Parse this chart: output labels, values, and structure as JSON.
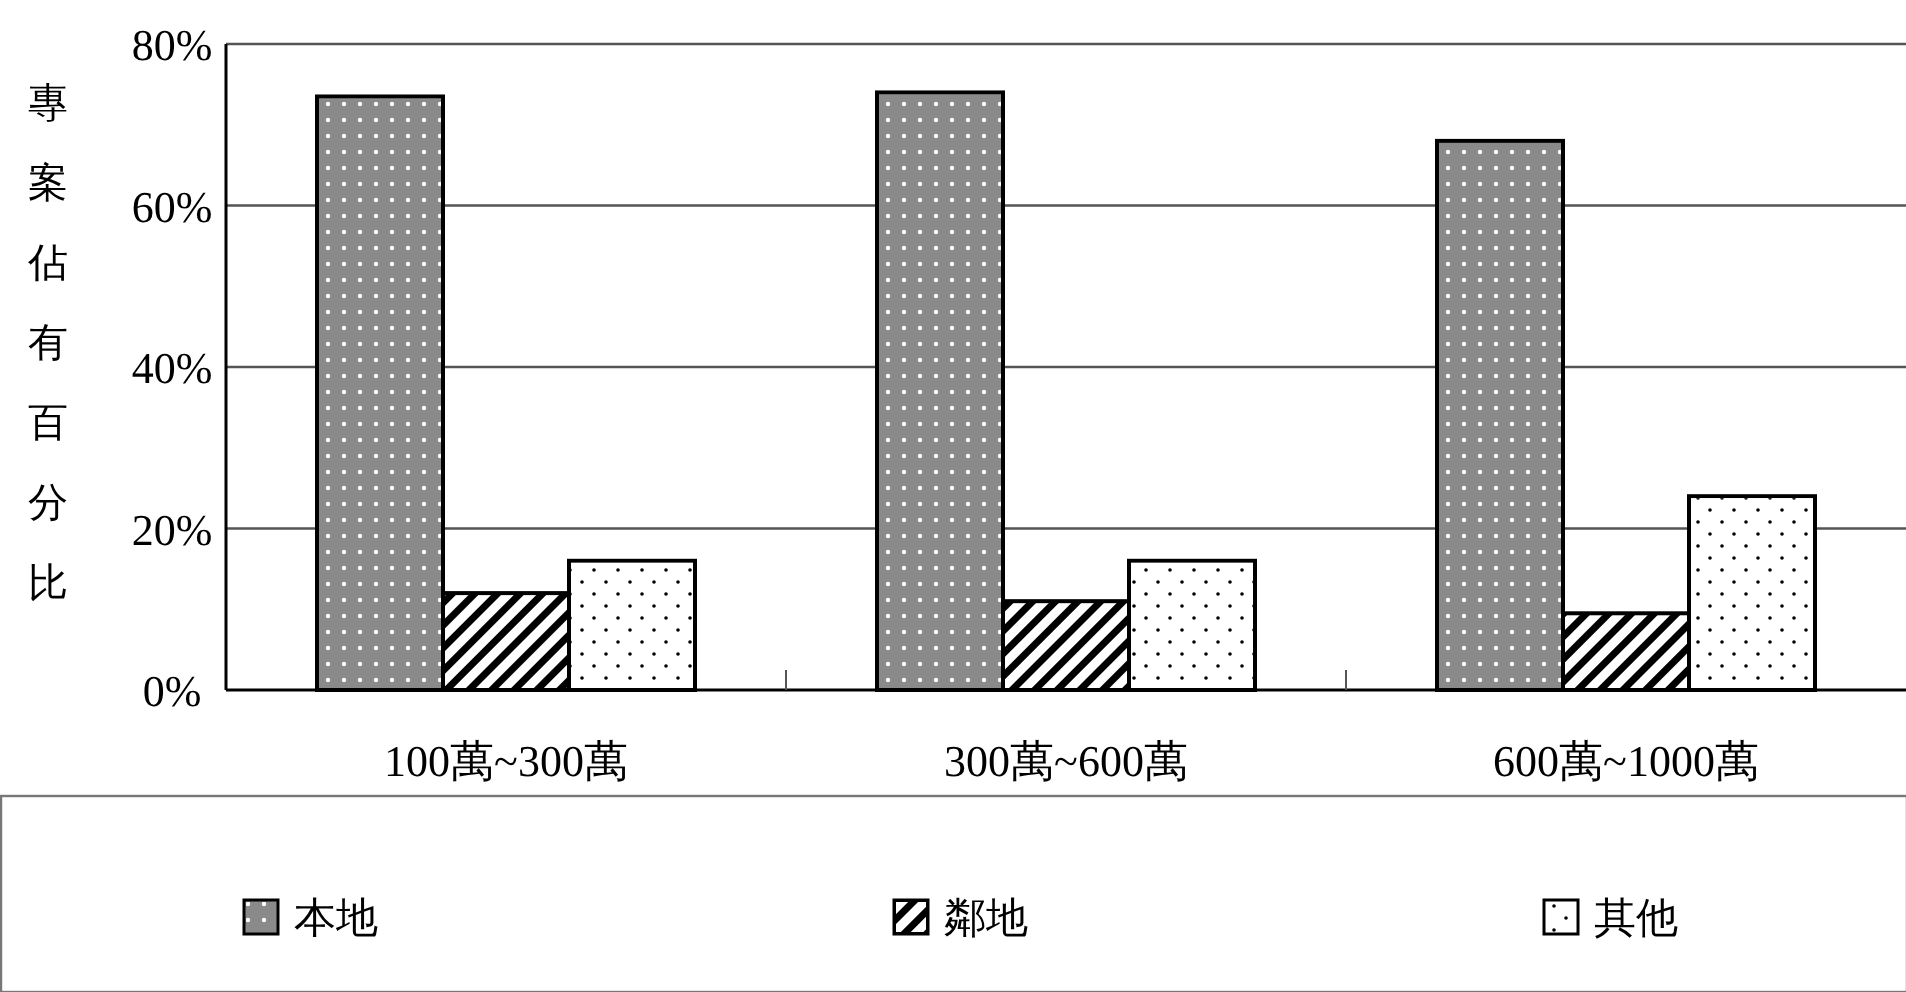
{
  "chart_data": {
    "type": "bar",
    "ylabel": "專案佔有百分比",
    "categories": [
      "100萬~300萬",
      "300萬~600萬",
      "600萬~1000萬"
    ],
    "series": [
      {
        "name": "本地",
        "color": "#8a8a8a",
        "values": [
          73.5,
          74,
          68
        ]
      },
      {
        "name": "鄰地",
        "color": "#000000",
        "values": [
          12,
          11,
          9.5
        ]
      },
      {
        "name": "其他",
        "color": "#ffffff",
        "values": [
          16,
          16,
          24
        ]
      }
    ],
    "ylim": [
      0,
      80
    ],
    "yticks": [
      {
        "value": 0,
        "label": "0%"
      },
      {
        "value": 20,
        "label": "20%"
      },
      {
        "value": 40,
        "label": "40%"
      },
      {
        "value": 60,
        "label": "60%"
      },
      {
        "value": 80,
        "label": "80%"
      }
    ],
    "grid": "y",
    "legend": "bottom"
  }
}
